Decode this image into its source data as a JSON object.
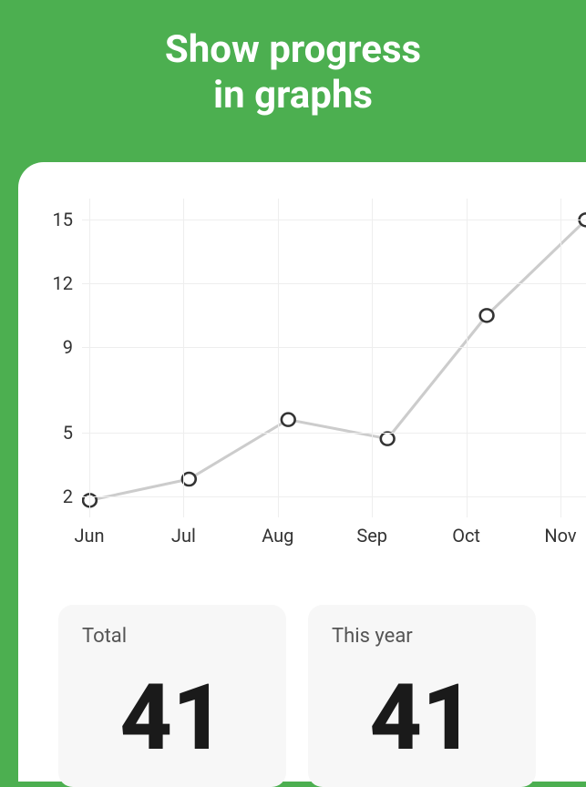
{
  "headline_line1": "Show progress",
  "headline_line2": "in graphs",
  "background_color": "#4caf50",
  "card_bg": "#ffffff",
  "chart": {
    "type": "line",
    "x_labels": [
      "Jun",
      "Jul",
      "Aug",
      "Sep",
      "Oct",
      "Nov"
    ],
    "y_ticks": [
      2,
      5,
      9,
      12,
      15
    ],
    "values": [
      1.8,
      2.8,
      5.6,
      4.7,
      10.5,
      15
    ],
    "y_min": 1,
    "y_max": 16,
    "line_color": "#cccccc",
    "line_width": 3,
    "marker_fill": "#ffffff",
    "marker_stroke": "#333333",
    "marker_stroke_width": 2.5,
    "marker_radius": 7,
    "grid_color": "#eeeeee",
    "axis_label_color": "#333333",
    "axis_label_fontsize": 20
  },
  "stats": {
    "total": {
      "label": "Total",
      "value": "41"
    },
    "this_year": {
      "label": "This year",
      "value": "41"
    },
    "card_bg": "#f7f7f7",
    "label_color": "#555555",
    "value_color": "#1a1a1a"
  }
}
